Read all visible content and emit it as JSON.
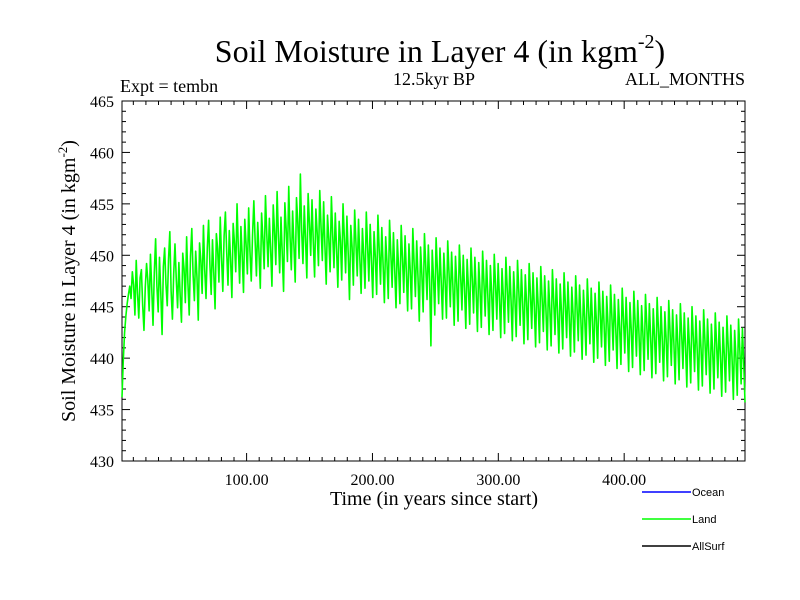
{
  "chart_data": {
    "type": "line",
    "title_main": "Soil Moisture in Layer 4 (in kgm",
    "title_sup": "-2",
    "title_close": ")",
    "expt_label": "Expt = tembn",
    "subtitle": "12.5kyr BP",
    "period_label": "ALL_MONTHS",
    "ylabel_main": "Soil Moisture in Layer 4 (in kgm",
    "ylabel_sup": "-2",
    "ylabel_close": ")",
    "xlabel": "Time (in years since start)",
    "xlim": [
      1,
      496
    ],
    "ylim": [
      430,
      465
    ],
    "xticks": [
      100,
      200,
      300,
      400
    ],
    "xtick_labels": [
      "100.00",
      "200.00",
      "300.00",
      "400.00"
    ],
    "yticks": [
      430,
      435,
      440,
      445,
      450,
      455,
      460,
      465
    ],
    "ytick_labels": [
      "430",
      "435",
      "440",
      "445",
      "450",
      "455",
      "460",
      "465"
    ],
    "legend": [
      {
        "name": "Ocean",
        "color": "#0000ff"
      },
      {
        "name": "Land",
        "color": "#00ff00"
      },
      {
        "name": "AllSurf",
        "color": "#000000"
      }
    ],
    "series": [
      {
        "name": "Land",
        "color": "#00ff00",
        "description": "annual soil moisture, noisy around ~450",
        "x_start": 1,
        "x_step": 1,
        "values": [
          436.2,
          439.8,
          442.5,
          444.1,
          445.3,
          446.2,
          447.0,
          445.8,
          448.4,
          447.1,
          444.2,
          449.5,
          446.3,
          443.9,
          447.8,
          448.6,
          445.1,
          442.7,
          446.9,
          449.2,
          447.5,
          444.6,
          450.1,
          446.8,
          443.2,
          448.3,
          451.6,
          447.0,
          444.5,
          449.8,
          446.4,
          442.3,
          448.9,
          450.7,
          447.2,
          445.1,
          449.6,
          452.3,
          446.5,
          443.8,
          448.2,
          451.1,
          447.6,
          444.9,
          449.3,
          446.1,
          443.5,
          450.2,
          448.7,
          445.4,
          451.8,
          447.3,
          444.2,
          449.9,
          452.6,
          448.1,
          445.6,
          450.4,
          447.9,
          443.7,
          451.2,
          449.5,
          446.3,
          452.9,
          448.6,
          445.8,
          450.7,
          453.4,
          449.1,
          446.2,
          451.5,
          448.3,
          444.8,
          452.1,
          450.6,
          447.4,
          453.7,
          449.8,
          446.5,
          451.9,
          454.2,
          450.3,
          447.1,
          452.4,
          449.6,
          445.9,
          453.1,
          451.2,
          448.4,
          455.0,
          450.7,
          447.3,
          452.8,
          449.9,
          446.4,
          453.5,
          451.1,
          448.2,
          454.6,
          450.4,
          447.5,
          452.0,
          455.3,
          451.4,
          448.0,
          453.2,
          450.2,
          446.8,
          454.1,
          451.6,
          448.7,
          455.8,
          452.1,
          448.9,
          453.6,
          450.5,
          447.0,
          454.9,
          452.3,
          449.1,
          456.2,
          451.9,
          448.3,
          453.7,
          450.1,
          446.5,
          455.1,
          452.6,
          449.4,
          456.7,
          451.8,
          448.6,
          454.3,
          451.0,
          447.4,
          455.6,
          453.2,
          449.7,
          457.9,
          452.4,
          449.2,
          454.8,
          451.5,
          447.8,
          456.0,
          453.1,
          450.0,
          455.4,
          451.3,
          447.9,
          454.5,
          452.2,
          449.0,
          456.3,
          452.7,
          449.5,
          455.2,
          450.9,
          447.2,
          453.9,
          451.6,
          448.4,
          455.7,
          452.0,
          448.8,
          454.1,
          450.6,
          446.9,
          453.3,
          451.4,
          447.6,
          455.0,
          451.7,
          448.3,
          453.8,
          450.2,
          445.7,
          452.9,
          450.8,
          447.1,
          454.4,
          451.2,
          448.0,
          453.5,
          449.7,
          446.3,
          452.6,
          450.0,
          446.8,
          454.2,
          450.9,
          447.5,
          453.0,
          449.4,
          445.9,
          452.3,
          449.8,
          446.2,
          453.9,
          450.5,
          447.2,
          452.7,
          449.1,
          445.4,
          451.8,
          449.3,
          445.8,
          453.4,
          450.1,
          446.9,
          452.2,
          448.6,
          444.9,
          451.5,
          448.8,
          445.3,
          452.9,
          449.7,
          446.4,
          451.9,
          448.3,
          444.6,
          451.1,
          448.5,
          444.8,
          452.6,
          449.2,
          446.0,
          451.4,
          447.9,
          443.6,
          450.8,
          448.1,
          444.5,
          452.1,
          449.0,
          445.7,
          451.0,
          447.6,
          441.2,
          450.5,
          447.8,
          444.2,
          451.7,
          448.6,
          445.3,
          450.7,
          447.3,
          443.8,
          450.2,
          447.5,
          443.9,
          451.4,
          448.3,
          445.0,
          450.3,
          447.0,
          443.2,
          449.9,
          447.2,
          443.6,
          451.0,
          448.0,
          444.7,
          450.0,
          446.8,
          442.9,
          449.6,
          446.9,
          443.3,
          450.7,
          447.7,
          444.4,
          449.8,
          446.5,
          442.6,
          449.3,
          446.6,
          443.0,
          450.4,
          447.4,
          444.1,
          449.5,
          446.2,
          442.3,
          449.0,
          446.3,
          442.7,
          450.1,
          447.1,
          443.8,
          449.2,
          445.9,
          442.0,
          448.7,
          446.0,
          442.4,
          449.8,
          446.8,
          443.5,
          448.9,
          445.6,
          441.7,
          448.4,
          445.7,
          442.1,
          449.5,
          446.5,
          443.2,
          448.6,
          445.3,
          441.4,
          448.1,
          445.4,
          441.8,
          449.2,
          446.2,
          442.9,
          448.3,
          445.0,
          441.1,
          447.8,
          445.1,
          441.5,
          448.9,
          445.9,
          442.6,
          448.0,
          444.7,
          440.8,
          447.5,
          444.8,
          441.2,
          448.6,
          445.6,
          442.3,
          447.7,
          444.4,
          440.5,
          447.2,
          444.5,
          440.9,
          448.3,
          445.3,
          442.0,
          447.4,
          444.1,
          440.2,
          446.9,
          444.2,
          440.6,
          448.0,
          445.0,
          441.7,
          447.1,
          443.8,
          439.9,
          446.6,
          443.9,
          440.3,
          447.7,
          444.7,
          441.4,
          446.8,
          443.5,
          439.6,
          446.3,
          443.6,
          440.0,
          447.4,
          444.4,
          441.1,
          446.5,
          443.2,
          439.3,
          446.0,
          443.3,
          439.7,
          447.1,
          444.1,
          440.8,
          446.2,
          442.9,
          439.0,
          445.7,
          443.0,
          439.4,
          446.8,
          443.8,
          440.5,
          445.9,
          442.6,
          438.7,
          445.4,
          442.7,
          439.1,
          446.5,
          443.5,
          440.2,
          445.6,
          442.3,
          438.4,
          445.1,
          442.4,
          438.8,
          446.2,
          443.2,
          439.9,
          445.3,
          442.0,
          438.1,
          444.8,
          442.1,
          438.5,
          445.9,
          442.9,
          439.6,
          445.0,
          441.7,
          437.8,
          444.5,
          441.8,
          438.2,
          445.6,
          442.6,
          439.3,
          444.7,
          441.4,
          437.5,
          444.2,
          441.5,
          437.9,
          445.3,
          442.3,
          439.0,
          444.4,
          441.1,
          437.2,
          443.9,
          441.2,
          437.6,
          445.0,
          442.0,
          438.7,
          444.1,
          440.8,
          436.9,
          443.6,
          440.9,
          437.3,
          444.7,
          441.7,
          438.4,
          443.8,
          440.5,
          436.6,
          443.3,
          440.6,
          437.0,
          444.4,
          441.4,
          438.1,
          443.5,
          440.2,
          436.3,
          443.0,
          440.3,
          436.7,
          444.1,
          441.1,
          437.8,
          443.2,
          439.9,
          436.0,
          442.7,
          440.0,
          436.4,
          443.8,
          440.8,
          437.5,
          442.9,
          439.6,
          435.7
        ]
      }
    ]
  }
}
